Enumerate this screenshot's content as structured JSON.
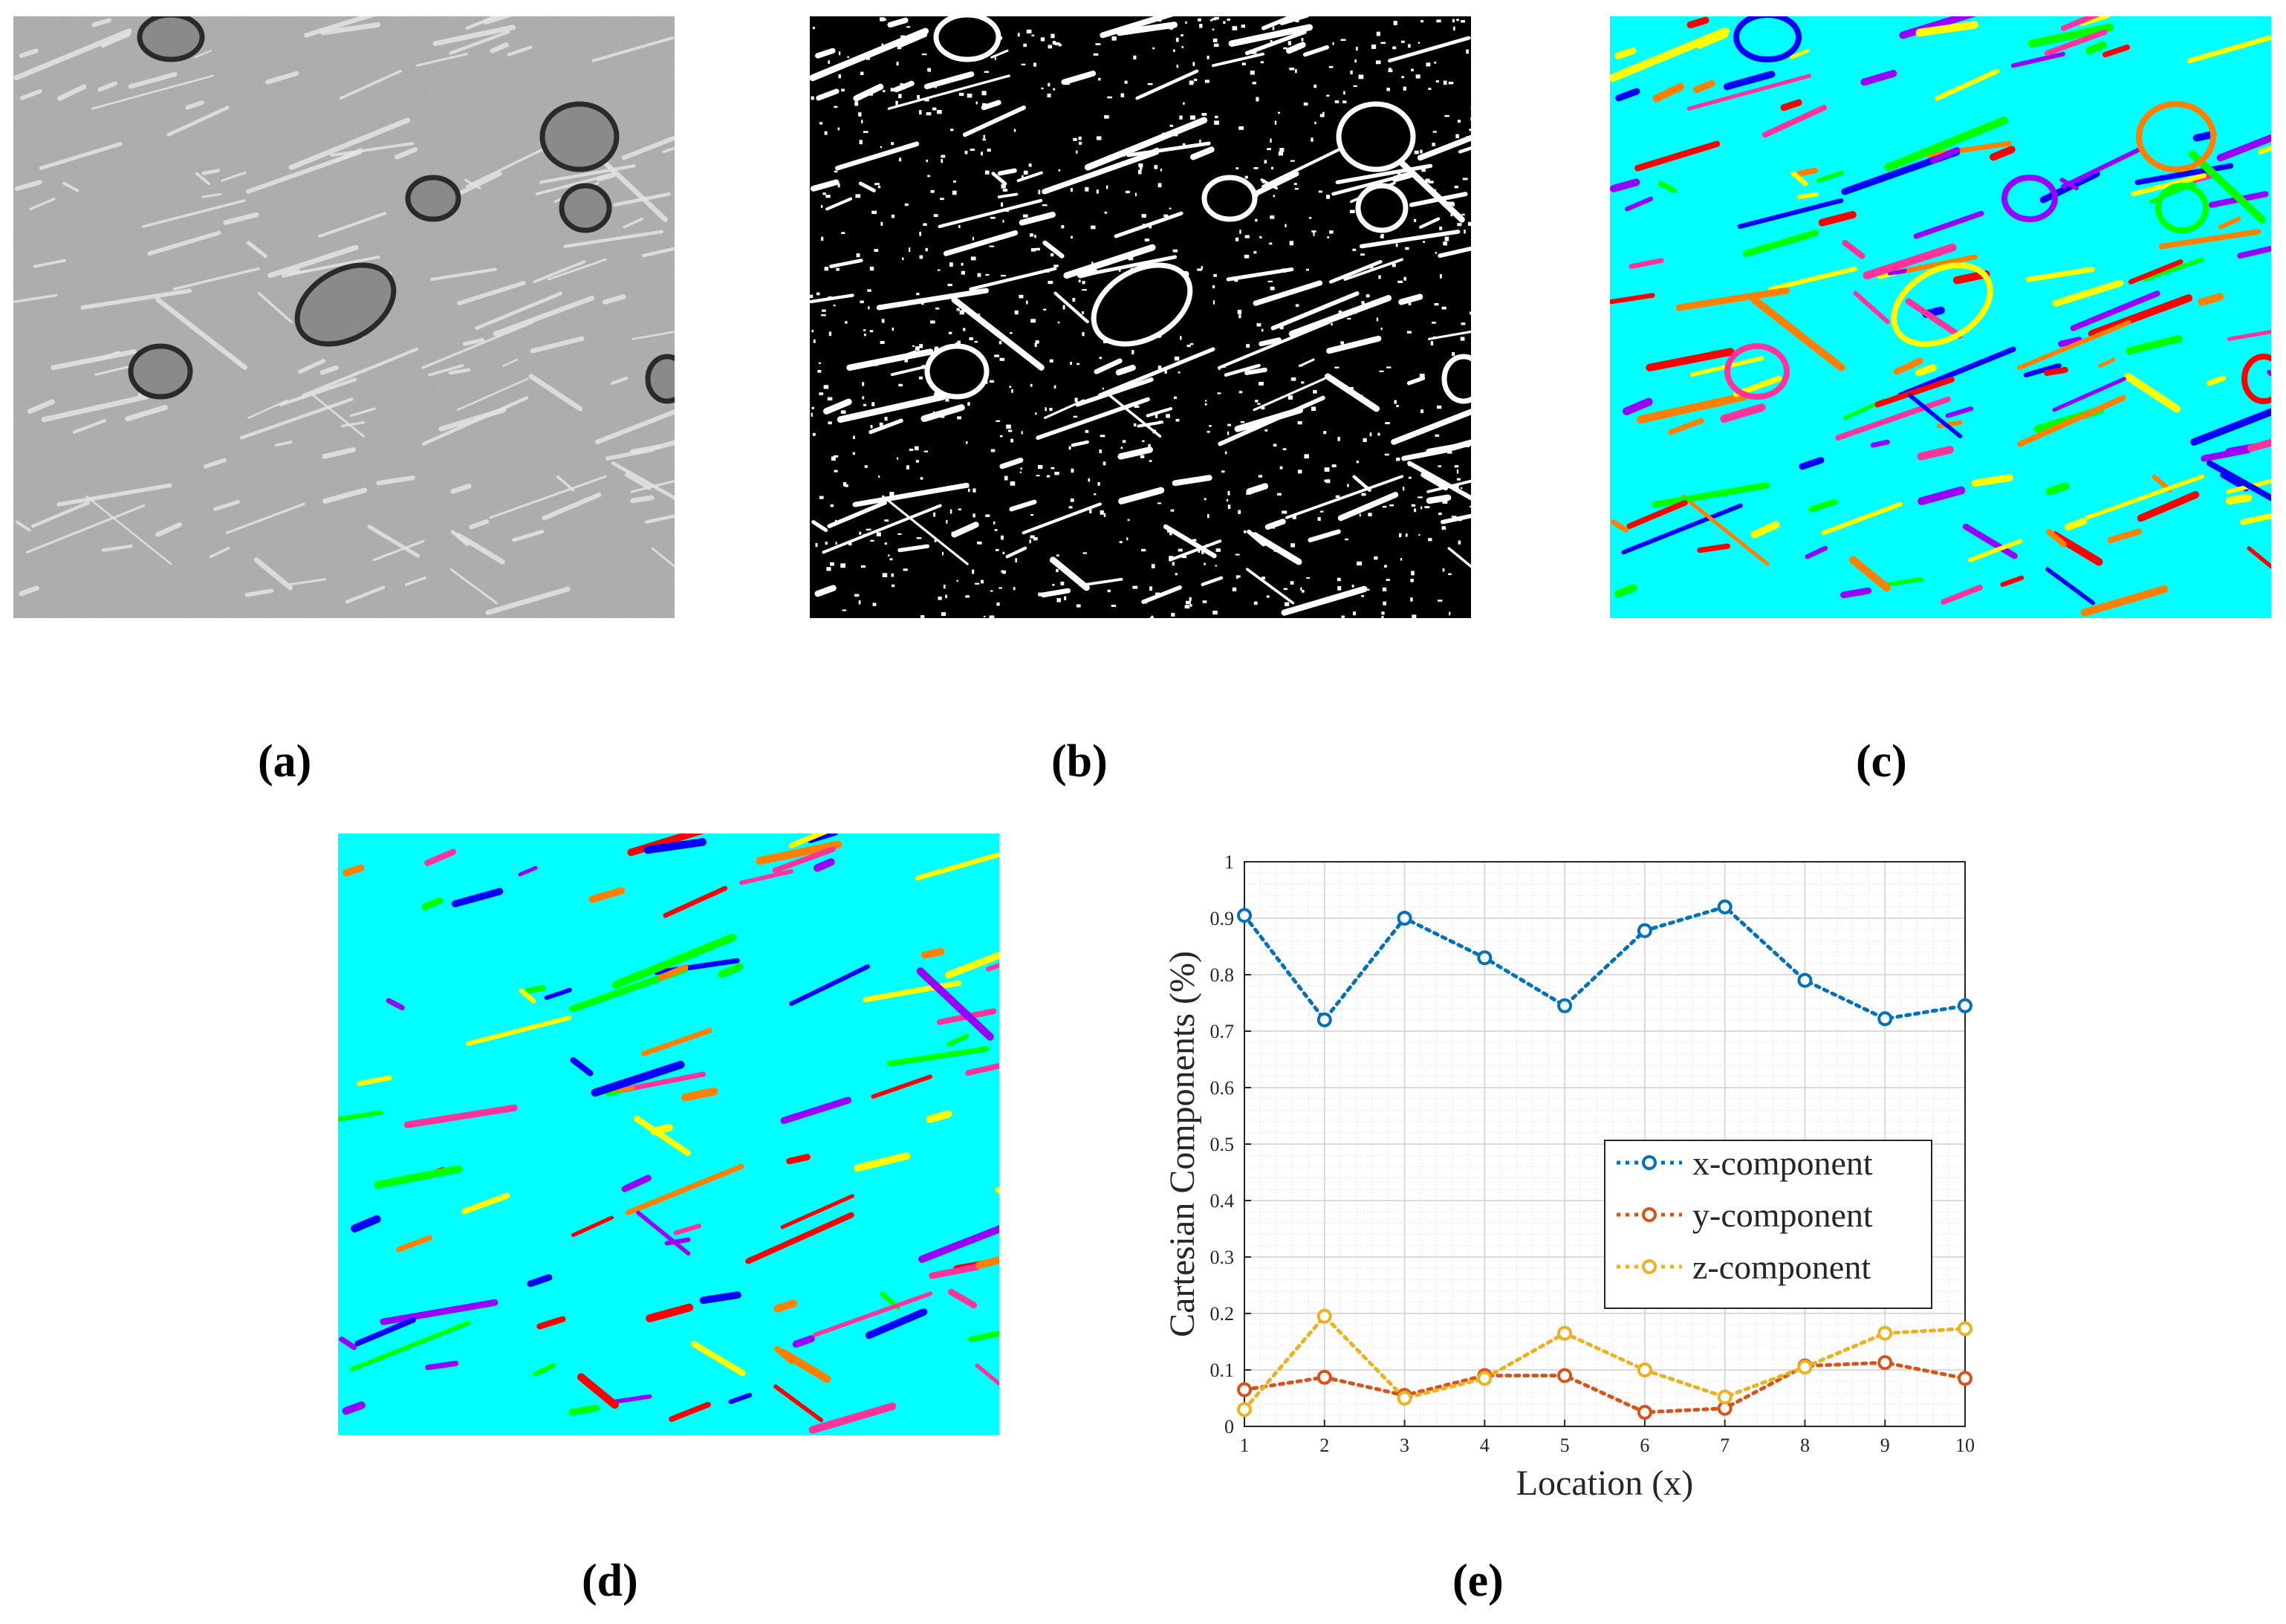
{
  "captions": {
    "a": "(a)",
    "b": "(b)",
    "c": "(c)",
    "d": "(d)",
    "e": "(e)"
  },
  "panels": {
    "a": {
      "description_name": "grayscale micro-ct slice"
    },
    "b": {
      "description_name": "binarized slice"
    },
    "c": {
      "description_name": "labeled components with voids"
    },
    "d": {
      "description_name": "labeled fibers voids removed"
    }
  },
  "palette": {
    "background": "#00FFFF",
    "labels": [
      "#FF0000",
      "#0000FF",
      "#FF8000",
      "#9900FF",
      "#00FF00",
      "#FFFF00",
      "#FF3399"
    ],
    "x_series": "#0072BD",
    "y_series": "#D95319",
    "z_series": "#EDB120"
  },
  "chart_data": {
    "type": "line",
    "title": "",
    "xlabel": "Location (x)",
    "ylabel": "Cartesian Components (%)",
    "xlim": [
      1,
      10
    ],
    "ylim": [
      0,
      1
    ],
    "grid": true,
    "legend_position": "center-right",
    "x": [
      1,
      2,
      3,
      4,
      5,
      6,
      7,
      8,
      9,
      10
    ],
    "x_tick_labels": [
      "1",
      "2",
      "3",
      "4",
      "5",
      "6",
      "7",
      "8",
      "9",
      "10"
    ],
    "y_tick_labels": [
      "0",
      "0.1",
      "0.2",
      "0.3",
      "0.4",
      "0.5",
      "0.6",
      "0.7",
      "0.8",
      "0.9",
      "1"
    ],
    "series": [
      {
        "name": "x-component",
        "color": "#0072BD",
        "values": [
          0.905,
          0.72,
          0.9,
          0.83,
          0.745,
          0.878,
          0.92,
          0.79,
          0.722,
          0.745
        ]
      },
      {
        "name": "y-component",
        "color": "#D95319",
        "values": [
          0.065,
          0.087,
          0.055,
          0.09,
          0.09,
          0.025,
          0.032,
          0.107,
          0.113,
          0.085
        ]
      },
      {
        "name": "z-component",
        "color": "#EDB120",
        "values": [
          0.03,
          0.195,
          0.05,
          0.085,
          0.165,
          0.1,
          0.052,
          0.105,
          0.165,
          0.173
        ]
      }
    ]
  }
}
